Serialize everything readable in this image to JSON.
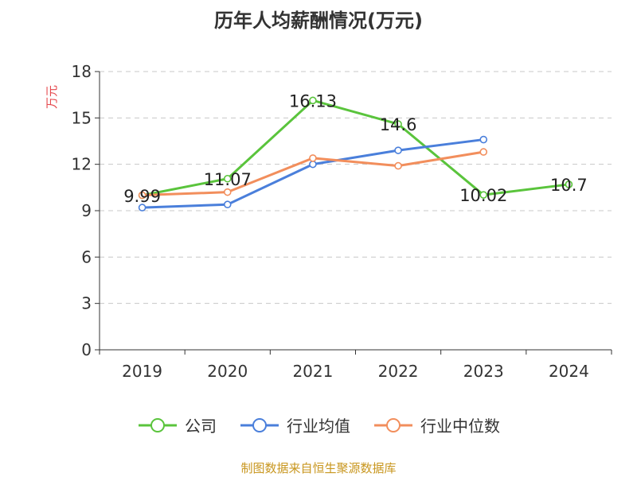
{
  "chart_data": {
    "type": "line",
    "title": "历年人均薪酬情况(万元)",
    "ylabel": "万元",
    "categories": [
      "2019",
      "2020",
      "2021",
      "2022",
      "2023",
      "2024"
    ],
    "ylim": [
      0,
      18
    ],
    "yticks": [
      0,
      3,
      6,
      9,
      12,
      15,
      18
    ],
    "grid": true,
    "legend_position": "bottom",
    "series": [
      {
        "name": "公司",
        "color": "#5ac43c",
        "values": [
          9.99,
          11.07,
          16.13,
          14.6,
          10.02,
          10.7
        ],
        "labels": [
          "9.99",
          "11.07",
          "16.13",
          "14.6",
          "10.02",
          "10.7"
        ]
      },
      {
        "name": "行业均值",
        "color": "#4a7fdb",
        "values": [
          9.2,
          9.4,
          12.0,
          12.9,
          13.6,
          null
        ]
      },
      {
        "name": "行业中位数",
        "color": "#f28e5c",
        "values": [
          10.0,
          10.2,
          12.4,
          11.9,
          12.8,
          null
        ]
      }
    ]
  },
  "footer": {
    "source": "制图数据来自恒生聚源数据库"
  }
}
